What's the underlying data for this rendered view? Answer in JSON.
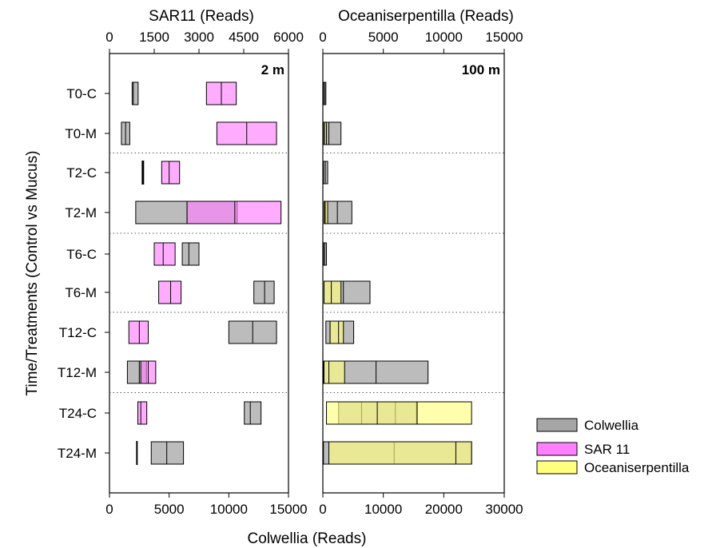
{
  "chart_data": {
    "type": "floating-bar",
    "ylabel": "Time/Treatments (Control vs Mucus)",
    "xlabel_bottom": "Colwellia (Reads)",
    "categories": [
      "T0-C",
      "T0-M",
      "T2-C",
      "T2-M",
      "T6-C",
      "T6-M",
      "T12-C",
      "T12-M",
      "T24-C",
      "T24-M"
    ],
    "colors": {
      "Colwellia": "#a6a6a6",
      "SAR 11": "#ff80ff",
      "Oceaniserpentilla": "#ffff80"
    },
    "legend": [
      {
        "key": "Colwellia",
        "label": "Colwellia"
      },
      {
        "key": "SAR 11",
        "label": "SAR 11"
      },
      {
        "key": "Oceaniserpentilla",
        "label": "Oceaniserpentilla"
      }
    ],
    "legend_position": "right",
    "panels": [
      {
        "label": "2 m",
        "top_axis_label": "SAR11 (Reads)",
        "top_ticks": [
          "0",
          "1500",
          "3000",
          "4500",
          "6000"
        ],
        "top_range": [
          0,
          6000
        ],
        "bottom_ticks": [
          "0",
          "5000",
          "10000",
          "15000"
        ],
        "bottom_range": [
          0,
          15000
        ],
        "bars": {
          "Colwellia": [
            [
              1900,
              2000,
              2400
            ],
            [
              1000,
              1350,
              1700
            ],
            [
              2800,
              2800,
              2800
            ],
            [
              2200,
              6500,
              10700
            ],
            [
              6100,
              6650,
              7500
            ],
            [
              12100,
              13000,
              13800
            ],
            [
              10000,
              12000,
              14000
            ],
            [
              1500,
              2500,
              3100
            ],
            [
              11300,
              11800,
              12700
            ],
            [
              3500,
              4800,
              6200
            ]
          ],
          "Top": [
            [
              3250,
              3750,
              4250
            ],
            [
              3600,
              4600,
              5600
            ],
            [
              1750,
              2000,
              2350
            ],
            [
              2600,
              4200,
              5750
            ],
            [
              1500,
              1800,
              2200
            ],
            [
              1650,
              2050,
              2400
            ],
            [
              650,
              1000,
              1300
            ],
            [
              1050,
              1300,
              1550
            ],
            [
              950,
              1050,
              1250
            ],
            null
          ],
          "Colwellia_marker": [
            null,
            null,
            null,
            null,
            null,
            null,
            null,
            null,
            null,
            2300
          ]
        }
      },
      {
        "label": "100 m",
        "top_axis_label": "Oceaniserpentilla (Reads)",
        "top_ticks": [
          "0",
          "5000",
          "10000",
          "15000"
        ],
        "top_range": [
          0,
          15000
        ],
        "bottom_ticks": [
          "0",
          "10000",
          "20000",
          "30000"
        ],
        "bottom_range": [
          0,
          30000
        ],
        "bars": {
          "Colwellia": [
            [
              100,
              300,
              500
            ],
            [
              100,
              1000,
              3000
            ],
            [
              100,
              400,
              800
            ],
            [
              300,
              2400,
              4800
            ],
            [
              100,
              300,
              600
            ],
            [
              200,
              3400,
              7800
            ],
            [
              500,
              1200,
              5100
            ],
            [
              100,
              8800,
              17400
            ],
            [
              2600,
              6400,
              12000,
              15500
            ],
            [
              100,
              11800,
              24600
            ]
          ],
          "Top": [
            null,
            [
              50,
              150,
              300
            ],
            null,
            [
              100,
              200,
              400
            ],
            null,
            [
              100,
              700,
              1500
            ],
            [
              600,
              1300,
              1700
            ],
            [
              100,
              500,
              1800
            ],
            [
              300,
              4500,
              7800,
              12300
            ],
            [
              500,
              11000,
              12300
            ]
          ]
        }
      }
    ]
  }
}
